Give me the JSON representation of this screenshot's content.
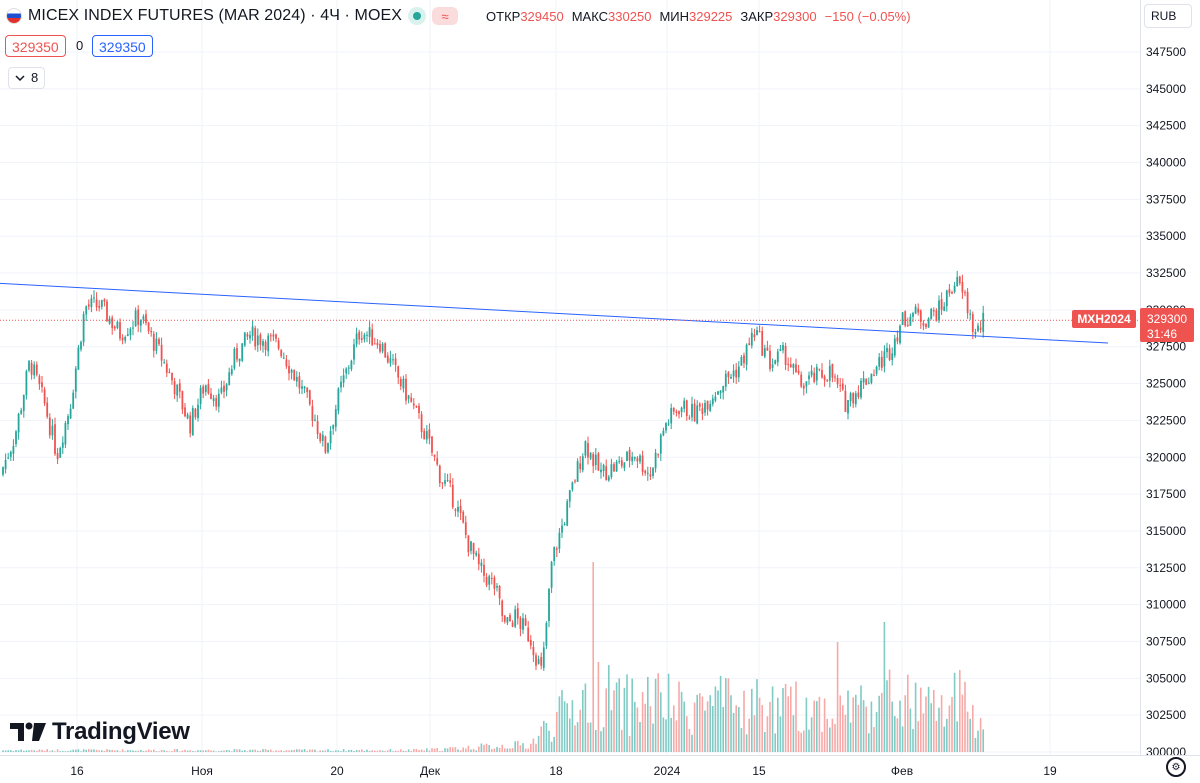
{
  "header": {
    "title": "MICEX INDEX FUTURES (MAR 2024) · 4Ч · MOEX",
    "ohlc": [
      {
        "label": "ОТКР",
        "value": "329450"
      },
      {
        "label": "МАКС",
        "value": "330250"
      },
      {
        "label": "МИН",
        "value": "329225"
      },
      {
        "label": "ЗАКР",
        "value": "329300"
      }
    ],
    "change": "−150 (−0.05%)",
    "wave_icon": "≈"
  },
  "order": {
    "sell_price": "329350",
    "spread": "0",
    "buy_price": "329350"
  },
  "indicators": {
    "collapse_icon": "chevron-down-icon",
    "count": "8"
  },
  "currency": "RUB",
  "brand": {
    "name": "TradingView"
  },
  "price_label": {
    "symbol": "MXH2024",
    "price": "329300",
    "timer": "31:46"
  },
  "colors": {
    "up": "#26a69a",
    "down": "#ef5350",
    "trendline": "#2962ff",
    "volume_up": "#80cbc4",
    "volume_down": "#f7a9a7",
    "grid": "#f0f3fa"
  },
  "chart_data": {
    "type": "candlestick",
    "y_axis": {
      "ticks": [
        "347500",
        "345000",
        "342500",
        "340000",
        "337500",
        "335000",
        "332500",
        "330000",
        "327500",
        "325000",
        "322500",
        "320000",
        "317500",
        "315000",
        "312500",
        "310000",
        "307500",
        "305000",
        "302500",
        "300000"
      ],
      "range": [
        300000,
        349000
      ]
    },
    "x_axis": {
      "ticks": [
        "16",
        "Ноя",
        "20",
        "Дек",
        "18",
        "2024",
        "15",
        "Фев",
        "19"
      ]
    },
    "last_price": 329300,
    "trendline": {
      "start": 331800,
      "end": 327750
    },
    "close_anchors": [
      [
        0,
        318800
      ],
      [
        15,
        321500
      ],
      [
        30,
        326500
      ],
      [
        45,
        323500
      ],
      [
        57,
        320200
      ],
      [
        70,
        323500
      ],
      [
        85,
        330200
      ],
      [
        100,
        330300
      ],
      [
        120,
        328400
      ],
      [
        140,
        329600
      ],
      [
        160,
        327000
      ],
      [
        175,
        324800
      ],
      [
        190,
        322200
      ],
      [
        205,
        325000
      ],
      [
        220,
        323800
      ],
      [
        235,
        326800
      ],
      [
        250,
        328300
      ],
      [
        265,
        328000
      ],
      [
        280,
        327500
      ],
      [
        300,
        324800
      ],
      [
        315,
        322600
      ],
      [
        325,
        320500
      ],
      [
        340,
        324500
      ],
      [
        360,
        328600
      ],
      [
        380,
        327800
      ],
      [
        395,
        325800
      ],
      [
        410,
        323800
      ],
      [
        425,
        321600
      ],
      [
        440,
        318800
      ],
      [
        455,
        317000
      ],
      [
        468,
        314200
      ],
      [
        480,
        312300
      ],
      [
        495,
        311200
      ],
      [
        505,
        308500
      ],
      [
        515,
        309200
      ],
      [
        530,
        307800
      ],
      [
        542,
        305300
      ],
      [
        552,
        313000
      ],
      [
        565,
        316000
      ],
      [
        575,
        318600
      ],
      [
        585,
        321000
      ],
      [
        600,
        318900
      ],
      [
        620,
        319500
      ],
      [
        635,
        320300
      ],
      [
        650,
        318800
      ],
      [
        665,
        322200
      ],
      [
        680,
        323500
      ],
      [
        695,
        322900
      ],
      [
        710,
        324100
      ],
      [
        725,
        325200
      ],
      [
        740,
        326200
      ],
      [
        755,
        328600
      ],
      [
        770,
        326400
      ],
      [
        785,
        327000
      ],
      [
        800,
        324900
      ],
      [
        815,
        325400
      ],
      [
        830,
        325800
      ],
      [
        845,
        323700
      ],
      [
        860,
        324800
      ],
      [
        875,
        326000
      ],
      [
        890,
        327300
      ],
      [
        900,
        329000
      ],
      [
        910,
        329800
      ],
      [
        925,
        329400
      ],
      [
        940,
        330000
      ],
      [
        955,
        332000
      ],
      [
        965,
        330800
      ],
      [
        975,
        328300
      ],
      [
        985,
        329300
      ]
    ],
    "volume_anchors": [
      [
        0,
        2
      ],
      [
        410,
        2
      ],
      [
        440,
        3
      ],
      [
        470,
        5
      ],
      [
        500,
        7
      ],
      [
        530,
        8
      ],
      [
        542,
        23
      ],
      [
        560,
        40
      ],
      [
        575,
        55
      ],
      [
        590,
        61
      ],
      [
        600,
        70
      ],
      [
        620,
        50
      ],
      [
        650,
        60
      ],
      [
        680,
        48
      ],
      [
        700,
        55
      ],
      [
        720,
        52
      ],
      [
        740,
        48
      ],
      [
        760,
        53
      ],
      [
        780,
        46
      ],
      [
        800,
        51
      ],
      [
        820,
        48
      ],
      [
        840,
        55
      ],
      [
        860,
        51
      ],
      [
        880,
        60
      ],
      [
        900,
        57
      ],
      [
        920,
        49
      ],
      [
        940,
        47
      ],
      [
        960,
        56
      ],
      [
        985,
        20
      ]
    ],
    "volume_spikes": [
      [
        594,
        190
      ],
      [
        885,
        130
      ],
      [
        838,
        110
      ],
      [
        961,
        82
      ],
      [
        598,
        90
      ]
    ]
  }
}
